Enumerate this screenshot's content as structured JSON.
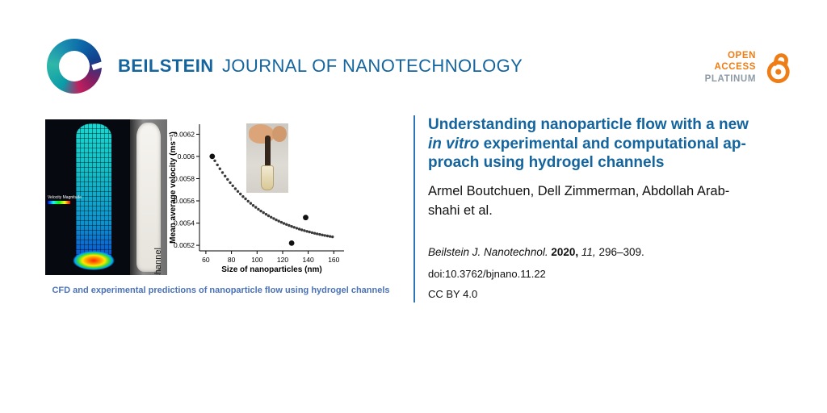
{
  "header": {
    "journal_bold": "BEILSTEIN",
    "journal_light": "JOURNAL OF NANOTECHNOLOGY",
    "open_access": {
      "line1": "OPEN",
      "line2": "ACCESS",
      "line3": "PLATINUM"
    }
  },
  "figure": {
    "cfd_legend": "Velocity Magnitude",
    "photo_label": "pHEMA hydrogel channel",
    "caption": "CFD and experimental predictions of nanoparticle flow using hydrogel channels"
  },
  "chart_data": {
    "type": "scatter",
    "title": "",
    "xlabel": "Size of nanoparticles (nm)",
    "ylabel": "Mean average velocity (ms⁻¹)",
    "xlim": [
      55,
      168
    ],
    "ylim": [
      0.00515,
      0.00629
    ],
    "xticks": [
      60,
      80,
      100,
      120,
      140,
      160
    ],
    "yticks": [
      0.0052,
      0.0054,
      0.0056,
      0.0058,
      0.006,
      0.0062
    ],
    "ytick_labels": [
      "0.0052",
      "0.0054",
      "0.0056",
      "0.0058",
      "0.006",
      "0.0062"
    ],
    "grid": false,
    "legend": "none",
    "series": [
      {
        "name": "cfd-prediction-curve",
        "marker_radius": 1.7,
        "color": "#3a3a3a",
        "points": [
          [
            65,
            0.006
          ],
          [
            67,
            0.005961
          ],
          [
            69,
            0.005924
          ],
          [
            71,
            0.005889
          ],
          [
            73,
            0.005855
          ],
          [
            75,
            0.005823
          ],
          [
            77,
            0.005793
          ],
          [
            79,
            0.005764
          ],
          [
            81,
            0.005736
          ],
          [
            83,
            0.00571
          ],
          [
            85,
            0.005685
          ],
          [
            87,
            0.005662
          ],
          [
            89,
            0.005639
          ],
          [
            91,
            0.005618
          ],
          [
            93,
            0.005597
          ],
          [
            95,
            0.005578
          ],
          [
            97,
            0.005559
          ],
          [
            99,
            0.005542
          ],
          [
            101,
            0.005525
          ],
          [
            103,
            0.005509
          ],
          [
            105,
            0.005494
          ],
          [
            107,
            0.00548
          ],
          [
            109,
            0.005466
          ],
          [
            111,
            0.005453
          ],
          [
            113,
            0.005441
          ],
          [
            115,
            0.005429
          ],
          [
            117,
            0.005418
          ],
          [
            119,
            0.005407
          ],
          [
            121,
            0.005397
          ],
          [
            123,
            0.005388
          ],
          [
            125,
            0.005379
          ],
          [
            127,
            0.00537
          ],
          [
            129,
            0.005362
          ],
          [
            131,
            0.005354
          ],
          [
            133,
            0.005346
          ],
          [
            135,
            0.005339
          ],
          [
            137,
            0.005332
          ],
          [
            139,
            0.005326
          ],
          [
            141,
            0.00532
          ],
          [
            143,
            0.005314
          ],
          [
            145,
            0.005308
          ],
          [
            147,
            0.005303
          ],
          [
            149,
            0.005298
          ],
          [
            151,
            0.005293
          ],
          [
            153,
            0.005289
          ],
          [
            155,
            0.005284
          ],
          [
            157,
            0.00528
          ],
          [
            159,
            0.005276
          ]
        ]
      },
      {
        "name": "experimental-points",
        "marker_radius": 3.4,
        "color": "#111111",
        "points": [
          [
            65,
            0.006
          ],
          [
            127,
            0.00522
          ],
          [
            138,
            0.00545
          ]
        ]
      }
    ]
  },
  "article": {
    "title": {
      "line1": "Understanding nanoparticle flow with a new",
      "line2_italic": "in vitro",
      "line2_rest": " experimental and computational ap-",
      "line3": "proach using hydrogel channels"
    },
    "authors_line1": "Armel Boutchuen, Dell Zimmerman, Abdollah Arab-",
    "authors_line2": "shahi et al.",
    "citation": {
      "journal": "Beilstein J. Nanotechnol.",
      "year": "2020,",
      "volume": "11,",
      "pages": "296–309."
    },
    "doi": "doi:10.3762/bjnano.11.22",
    "license": "CC BY 4.0"
  },
  "colors": {
    "beilstein_blue": "#14649E",
    "caption_blue": "#4A72B8",
    "divider_blue": "#2D75B9",
    "open_access_orange": "#EF7D16",
    "platinum_gray": "#8E9BA6"
  }
}
